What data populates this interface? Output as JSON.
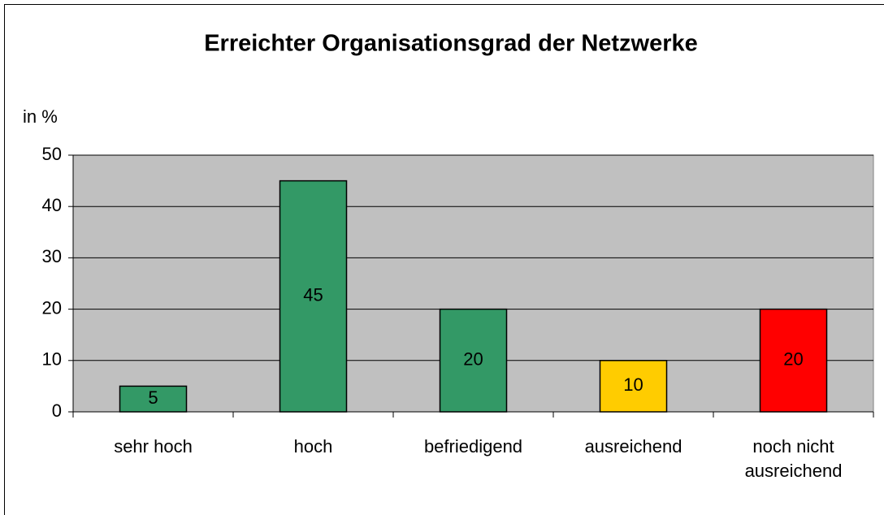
{
  "chart_data": {
    "type": "bar",
    "title": "Erreichter Organisationsgrad der Netzwerke",
    "y_label": "in %",
    "categories": [
      "sehr hoch",
      "hoch",
      "befriedigend",
      "ausreichend",
      "noch nicht ausreichend"
    ],
    "values": [
      5,
      45,
      20,
      10,
      20
    ],
    "colors": [
      "#339966",
      "#339966",
      "#339966",
      "#ffcc00",
      "#ff0000"
    ],
    "ylim": [
      0,
      50
    ],
    "yticks": [
      0,
      10,
      20,
      30,
      40,
      50
    ],
    "grid": true
  }
}
